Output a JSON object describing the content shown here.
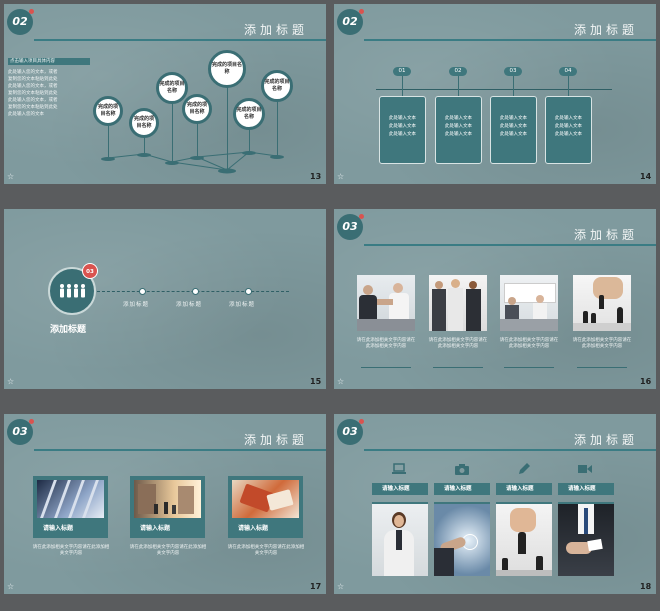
{
  "slides": [
    {
      "page": "13",
      "badge": "02",
      "title": "添加标题",
      "intro_heading": "点击输入项目具体内容",
      "intro_lines": [
        "此处输入您的文本，或者",
        "复制您的文本粘贴到此处",
        "此处输入您的文本，或者",
        "复制您的文本粘贴到此处",
        "此处输入您的文本，或者",
        "复制您的文本粘贴到此处",
        "此处输入您的文本"
      ],
      "nodes": [
        "完成的项目名称",
        "完成的项目名称",
        "完成的项目名称",
        "完成的项目名称",
        "完成的项目名称",
        "完成的项目名称",
        "完成的项目名称"
      ]
    },
    {
      "page": "14",
      "badge": "02",
      "title": "添加标题",
      "steps": [
        {
          "num": "01",
          "text": [
            "此处输入文本",
            "此处输入文本",
            "此处输入文本"
          ]
        },
        {
          "num": "02",
          "text": [
            "此处输入文本",
            "此处输入文本",
            "此处输入文本"
          ]
        },
        {
          "num": "03",
          "text": [
            "此处输入文本",
            "此处输入文本",
            "此处输入文本"
          ]
        },
        {
          "num": "04",
          "text": [
            "此处输入文本",
            "此处输入文本",
            "此处输入文本"
          ]
        }
      ]
    },
    {
      "page": "15",
      "badge_small": "03",
      "main_label": "添加标题",
      "items": [
        "添加标题",
        "添加标题",
        "添加标题"
      ]
    },
    {
      "page": "16",
      "badge": "03",
      "title": "添加标题",
      "captions": [
        "请在此添加相关文字内容请在此添加相关文字内容",
        "请在此添加相关文字内容请在此添加相关文字内容",
        "请在此添加相关文字内容请在此添加相关文字内容",
        "请在此添加相关文字内容请在此添加相关文字内容"
      ]
    },
    {
      "page": "17",
      "badge": "03",
      "title": "添加标题",
      "cards": [
        {
          "label": "请输入标题",
          "caption": "请在此添加相关文字内容请在此添加相关文字内容"
        },
        {
          "label": "请输入标题",
          "caption": "请在此添加相关文字内容请在此添加相关文字内容"
        },
        {
          "label": "请输入标题",
          "caption": "请在此添加相关文字内容请在此添加相关文字内容"
        }
      ]
    },
    {
      "page": "18",
      "badge": "03",
      "title": "添加标题",
      "cards": [
        {
          "label": "请输入标题",
          "icon": "laptop-icon"
        },
        {
          "label": "请输入标题",
          "icon": "camera-icon"
        },
        {
          "label": "请输入标题",
          "icon": "pencil-icon"
        },
        {
          "label": "请输入标题",
          "icon": "video-icon"
        }
      ]
    }
  ],
  "colors": {
    "teal": "#3a6e74",
    "accent": "#d9534f",
    "slide_bg": "#7f9a9e"
  }
}
